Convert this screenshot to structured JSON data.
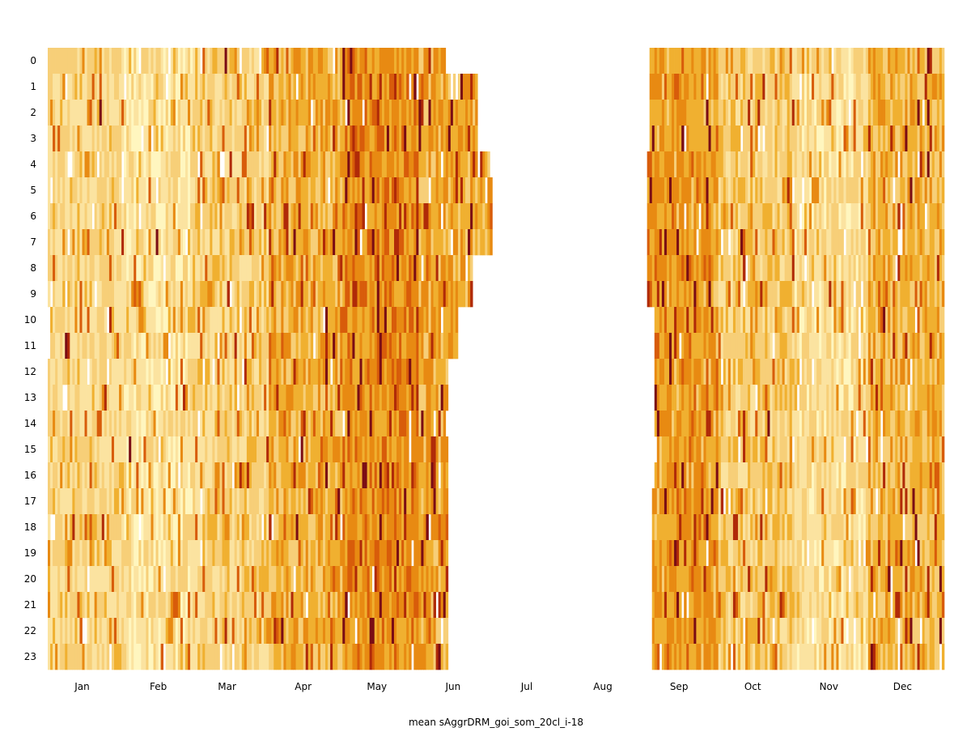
{
  "chart_data": {
    "type": "heatmap",
    "title": "",
    "xlabel": "mean sAggrDRM_goi_som_20cl_i-18",
    "ylabel": "",
    "x_tick_labels": [
      "Jan",
      "Feb",
      "Mar",
      "Apr",
      "May",
      "Jun",
      "Jul",
      "Aug",
      "Sep",
      "Oct",
      "Nov",
      "Dec"
    ],
    "y_tick_labels": [
      "0",
      "1",
      "2",
      "3",
      "4",
      "5",
      "6",
      "7",
      "8",
      "9",
      "10",
      "11",
      "12",
      "13",
      "14",
      "15",
      "16",
      "17",
      "18",
      "19",
      "20",
      "21",
      "22",
      "23"
    ],
    "x_range_days": [
      1,
      366
    ],
    "hours": [
      0,
      23
    ],
    "colormap": "YlOrRd",
    "color_stops": [
      "#fff6bf",
      "#fbe3a0",
      "#f7cf78",
      "#f0b030",
      "#e88a12",
      "#d85c0a",
      "#b02a08",
      "#7a0c14"
    ],
    "missing_color": "#ffffff",
    "grid": false,
    "colorbar": false,
    "data_coverage": {
      "hour_ranges": [
        {
          "hours": [
            0,
            0
          ],
          "segments": [
            [
              1,
              162
            ],
            [
              246,
              365
            ]
          ]
        },
        {
          "hours": [
            1,
            3
          ],
          "segments": [
            [
              1,
              175
            ],
            [
              246,
              365
            ]
          ]
        },
        {
          "hours": [
            4,
            7
          ],
          "segments": [
            [
              1,
              181
            ],
            [
              245,
              365
            ]
          ]
        },
        {
          "hours": [
            8,
            9
          ],
          "segments": [
            [
              1,
              173
            ],
            [
              245,
              365
            ]
          ]
        },
        {
          "hours": [
            10,
            11
          ],
          "segments": [
            [
              2,
              167
            ],
            [
              248,
              365
            ]
          ]
        },
        {
          "hours": [
            12,
            16
          ],
          "segments": [
            [
              1,
              163
            ],
            [
              248,
              365
            ]
          ]
        },
        {
          "hours": [
            17,
            23
          ],
          "segments": [
            [
              1,
              163
            ],
            [
              247,
              365
            ]
          ]
        }
      ],
      "note_level_by_month": {
        "Jan": 1.6,
        "Feb": 1.0,
        "Mar": 1.9,
        "Apr": 2.9,
        "May": 3.8,
        "Jun": 3.2,
        "Sep": 3.5,
        "Oct": 2.1,
        "Nov": 1.3,
        "Dec": 2.8
      }
    }
  }
}
